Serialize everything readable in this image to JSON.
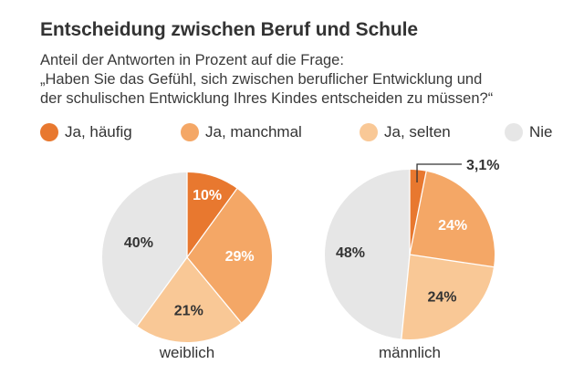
{
  "title": "Entscheidung zwischen Beruf und Schule",
  "subtitle_lines": [
    "Anteil der Antworten in Prozent auf die Frage:",
    "„Haben Sie das Gefühl, sich zwischen beruflicher Entwicklung und",
    "der schulischen Entwicklung Ihres Kindes entscheiden zu müssen?“"
  ],
  "colors": {
    "ja_haeufig": "#e8782f",
    "ja_manchmal": "#f4a766",
    "ja_selten": "#f9c896",
    "nie": "#e6e6e6",
    "text": "#333333"
  },
  "chart_data": {
    "type": "pie",
    "categories": [
      "Ja, häufig",
      "Ja, manchmal",
      "Ja, selten",
      "Nie"
    ],
    "legend_position": "top",
    "pies": [
      {
        "name": "weiblich",
        "values": [
          10,
          29,
          21,
          40
        ],
        "labels": [
          "10%",
          "29%",
          "21%",
          "40%"
        ]
      },
      {
        "name": "männlich",
        "values": [
          3.1,
          24,
          24,
          48
        ],
        "labels": [
          "3,1%",
          "24%",
          "24%",
          "48%"
        ]
      }
    ]
  }
}
